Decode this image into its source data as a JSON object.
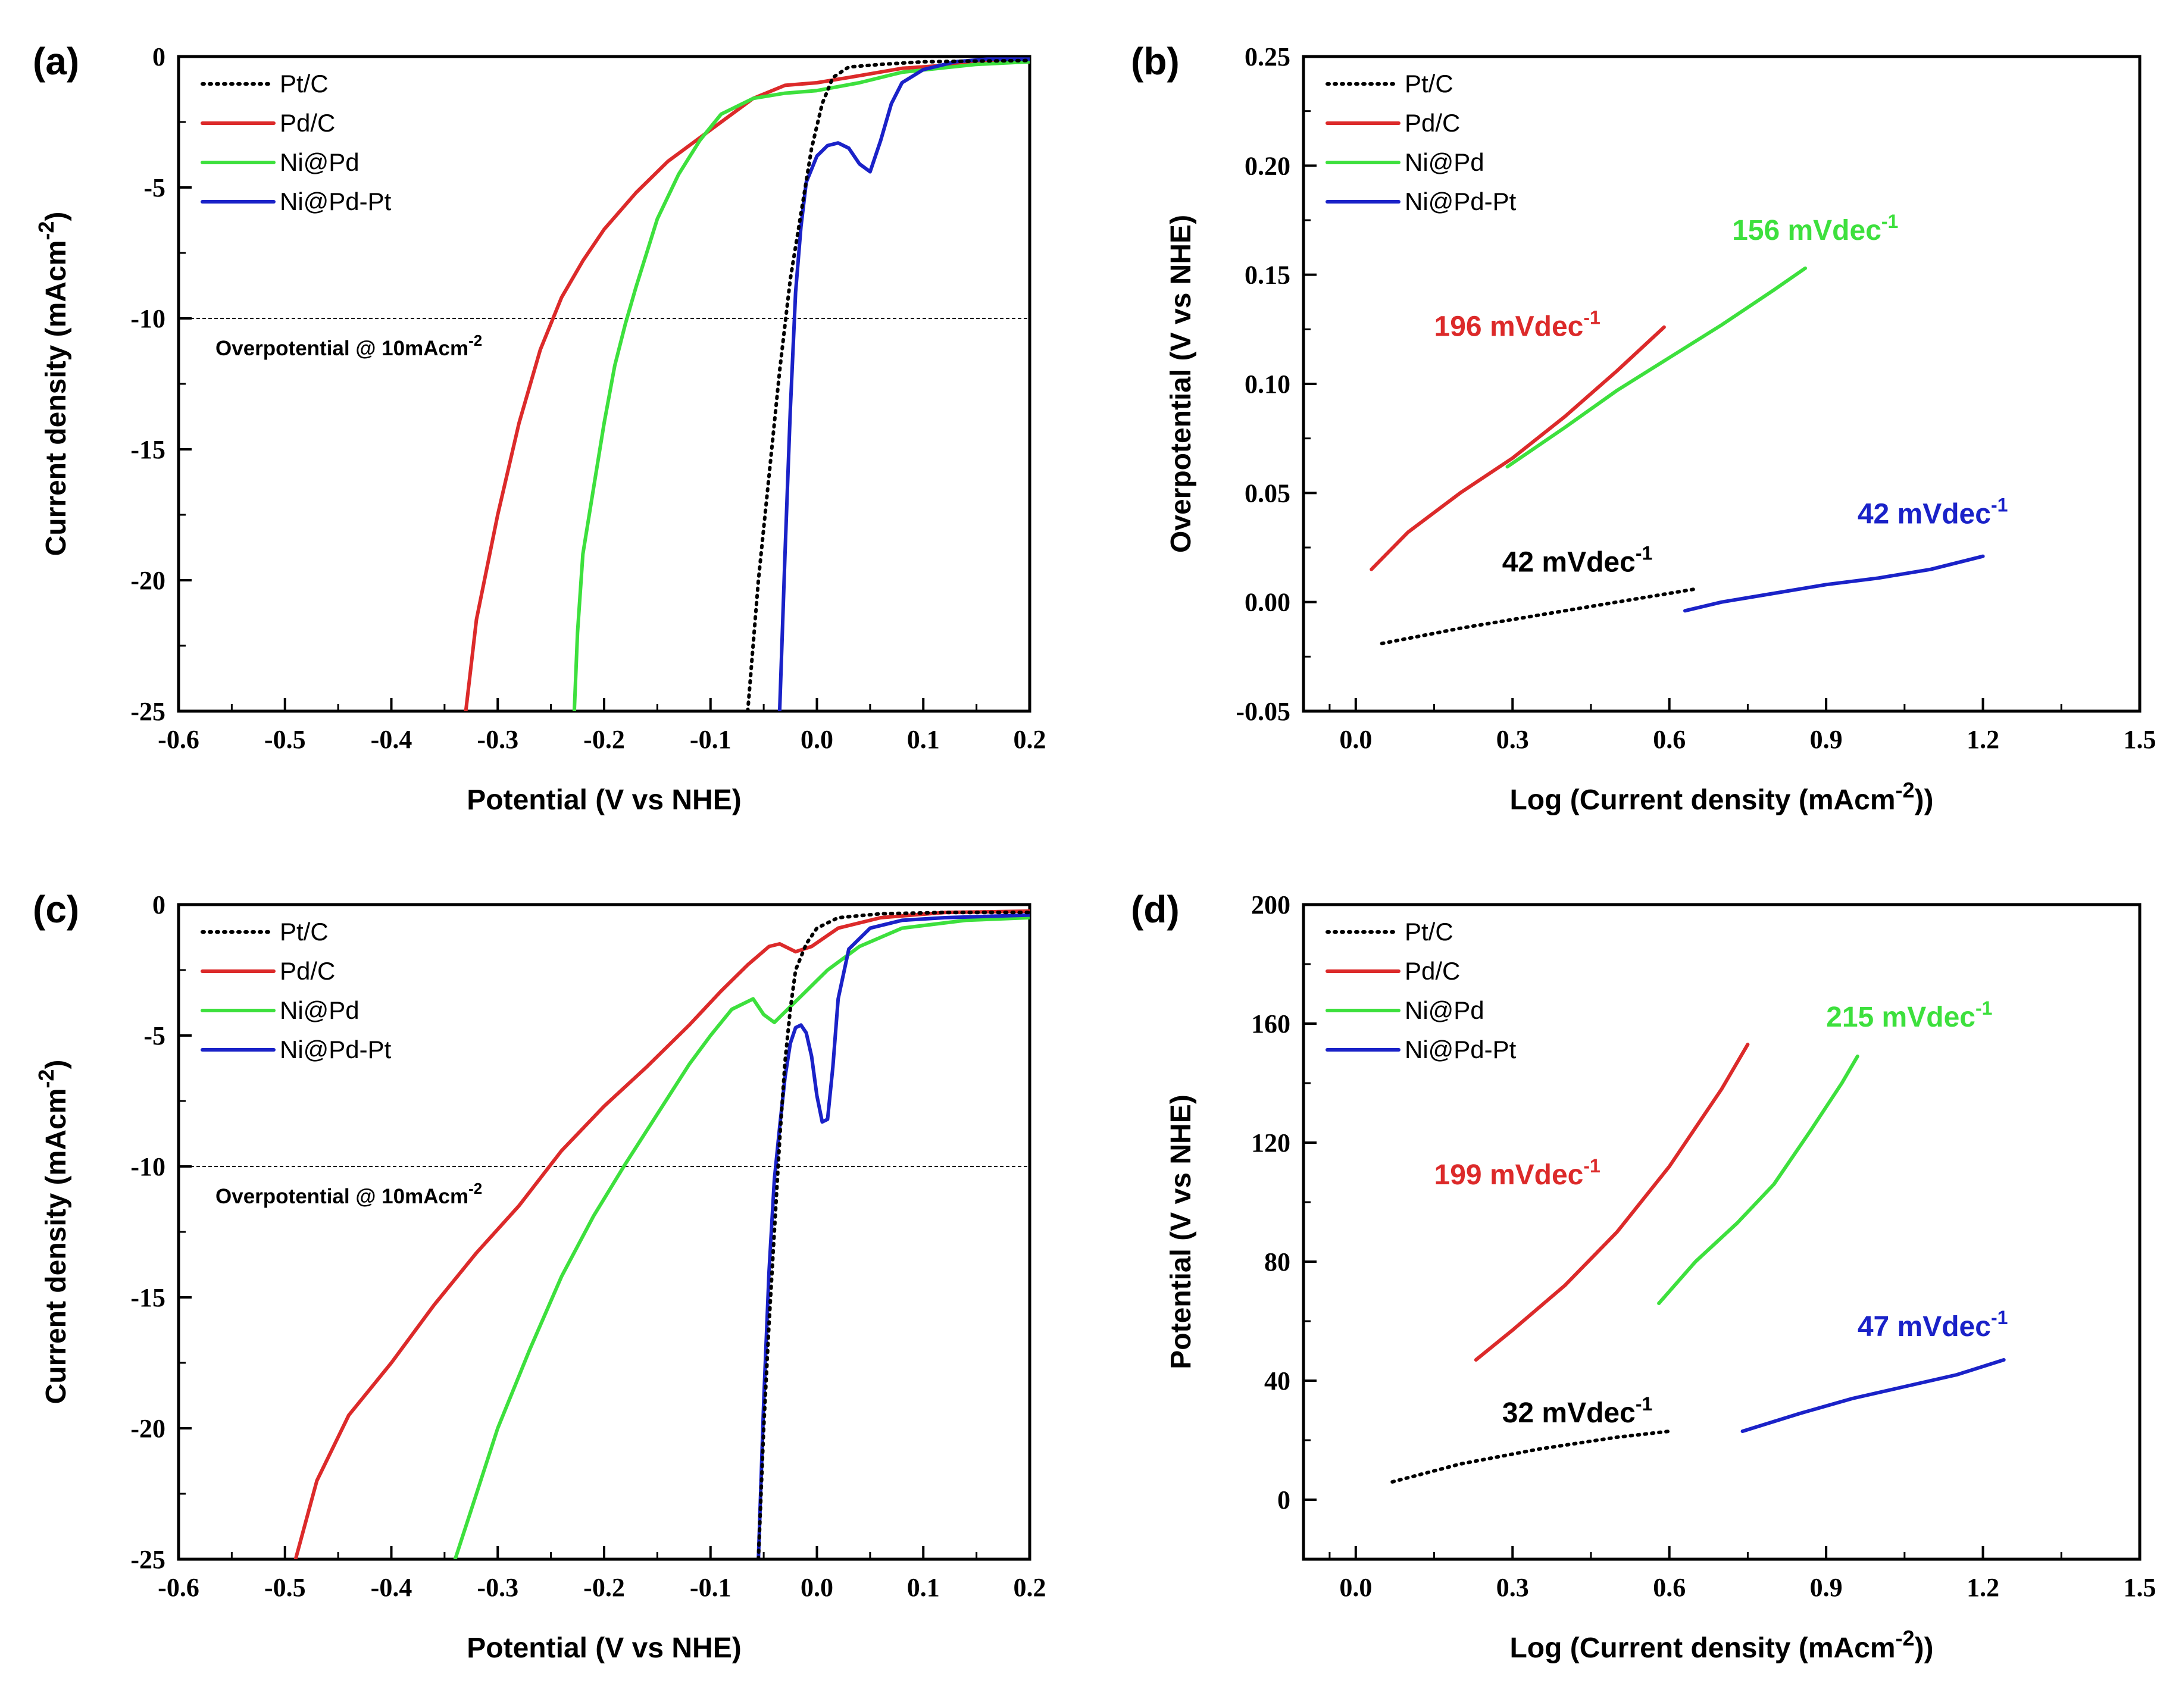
{
  "colors": {
    "Pt/C": "#000000",
    "Pd/C": "#dc2a2a",
    "Ni@Pd": "#3de03d",
    "Ni@Pd-Pt": "#1a22c8"
  },
  "chart_data": [
    {
      "panel": "(a)",
      "type": "line",
      "xlabel": "Potential (V vs NHE)",
      "ylabel": "Current density (mAcm-2)",
      "xlim": [
        -0.6,
        0.2
      ],
      "ylim": [
        -25,
        0
      ],
      "xticks": [
        -0.6,
        -0.5,
        -0.4,
        -0.3,
        -0.2,
        -0.1,
        0.0,
        0.1,
        0.2
      ],
      "xticklabels": [
        "-0.6",
        "-0.5",
        "-0.4",
        "-0.3",
        "-0.2",
        "-0.1",
        "0.0",
        "0.1",
        "0.2"
      ],
      "yticks": [
        0,
        -5,
        -10,
        -15,
        -20,
        -25
      ],
      "yticklabels": [
        "0",
        "-5",
        "-10",
        "-15",
        "-20",
        "-25"
      ],
      "legend": [
        "Pt/C",
        "Pd/C",
        "Ni@Pd",
        "Ni@Pd-Pt"
      ],
      "legend_position": "top-left",
      "hline": -10,
      "annotation": "Overpotential @ 10mAcm",
      "annotation_sup": "-2",
      "series": [
        {
          "name": "Pt/C",
          "style": "dotted",
          "x": [
            -0.065,
            -0.055,
            -0.045,
            -0.035,
            -0.025,
            -0.015,
            -0.005,
            0.005,
            0.015,
            0.03,
            0.06,
            0.1,
            0.2
          ],
          "y": [
            -25,
            -20,
            -16,
            -12,
            -8.5,
            -6,
            -3.5,
            -1.8,
            -0.8,
            -0.4,
            -0.3,
            -0.2,
            -0.15
          ]
        },
        {
          "name": "Pd/C",
          "style": "solid",
          "x": [
            -0.33,
            -0.32,
            -0.3,
            -0.28,
            -0.26,
            -0.24,
            -0.22,
            -0.2,
            -0.17,
            -0.14,
            -0.1,
            -0.06,
            -0.03,
            0.0,
            0.03,
            0.08,
            0.15,
            0.2
          ],
          "y": [
            -25,
            -21.5,
            -17.5,
            -14,
            -11.2,
            -9.2,
            -7.8,
            -6.6,
            -5.2,
            -4,
            -2.8,
            -1.6,
            -1.1,
            -1.0,
            -0.8,
            -0.45,
            -0.25,
            -0.2
          ]
        },
        {
          "name": "Ni@Pd",
          "style": "solid",
          "x": [
            -0.228,
            -0.225,
            -0.22,
            -0.21,
            -0.2,
            -0.19,
            -0.18,
            -0.17,
            -0.16,
            -0.15,
            -0.13,
            -0.11,
            -0.09,
            -0.06,
            -0.03,
            0.0,
            0.04,
            0.08,
            0.15,
            0.2
          ],
          "y": [
            -25,
            -22,
            -19,
            -16.5,
            -14,
            -11.8,
            -10.2,
            -8.8,
            -7.5,
            -6.2,
            -4.5,
            -3.2,
            -2.2,
            -1.6,
            -1.4,
            -1.3,
            -1.0,
            -0.6,
            -0.3,
            -0.2
          ]
        },
        {
          "name": "Ni@Pd-Pt",
          "style": "solid",
          "x": [
            -0.035,
            -0.03,
            -0.025,
            -0.02,
            -0.015,
            -0.01,
            0.0,
            0.01,
            0.02,
            0.03,
            0.04,
            0.05,
            0.06,
            0.07,
            0.08,
            0.1,
            0.13,
            0.16,
            0.2
          ],
          "y": [
            -25,
            -19,
            -13.5,
            -9,
            -6.5,
            -4.8,
            -3.8,
            -3.4,
            -3.3,
            -3.5,
            -4.1,
            -4.4,
            -3.2,
            -1.8,
            -1.0,
            -0.5,
            -0.2,
            -0.1,
            -0.1
          ]
        }
      ],
      "slope_labels": []
    },
    {
      "panel": "(b)",
      "type": "line",
      "xlabel": "Log (Current density (mAcm-2))",
      "ylabel": "Overpotential (V vs NHE)",
      "xlim": [
        -0.1,
        1.5
      ],
      "ylim": [
        -0.05,
        0.25
      ],
      "xticks": [
        0.0,
        0.3,
        0.6,
        0.9,
        1.2,
        1.5
      ],
      "xticklabels": [
        "0.0",
        "0.3",
        "0.6",
        "0.9",
        "1.2",
        "1.5"
      ],
      "yticks": [
        -0.05,
        0.0,
        0.05,
        0.1,
        0.15,
        0.2,
        0.25
      ],
      "yticklabels": [
        "-0.05",
        "0.00",
        "0.05",
        "0.10",
        "0.15",
        "0.20",
        "0.25"
      ],
      "legend": [
        "Pt/C",
        "Pd/C",
        "Ni@Pd",
        "Ni@Pd-Pt"
      ],
      "legend_position": "top-left",
      "series": [
        {
          "name": "Pt/C",
          "style": "dotted",
          "x": [
            0.05,
            0.2,
            0.4,
            0.65
          ],
          "y": [
            -0.019,
            -0.012,
            -0.004,
            0.006
          ]
        },
        {
          "name": "Pd/C",
          "style": "solid",
          "x": [
            0.03,
            0.1,
            0.2,
            0.3,
            0.4,
            0.5,
            0.59
          ],
          "y": [
            0.015,
            0.032,
            0.05,
            0.066,
            0.085,
            0.106,
            0.126
          ]
        },
        {
          "name": "Ni@Pd",
          "style": "solid",
          "x": [
            0.29,
            0.4,
            0.5,
            0.6,
            0.7,
            0.8,
            0.86
          ],
          "y": [
            0.062,
            0.08,
            0.097,
            0.112,
            0.127,
            0.143,
            0.153
          ]
        },
        {
          "name": "Ni@Pd-Pt",
          "style": "solid",
          "x": [
            0.63,
            0.7,
            0.8,
            0.9,
            1.0,
            1.1,
            1.2
          ],
          "y": [
            -0.004,
            0.0,
            0.004,
            0.008,
            0.011,
            0.015,
            0.021
          ]
        }
      ],
      "slope_labels": [
        {
          "series": "Pd/C",
          "text": "196 mVdec",
          "sup": "-1",
          "x": 0.15,
          "y": 0.122
        },
        {
          "series": "Ni@Pd",
          "text": "156 mVdec",
          "sup": "-1",
          "x": 0.72,
          "y": 0.166
        },
        {
          "series": "Pt/C",
          "text": "42 mVdec",
          "sup": "-1",
          "x": 0.28,
          "y": 0.014
        },
        {
          "series": "Ni@Pd-Pt",
          "text": "42 mVdec",
          "sup": "-1",
          "x": 0.96,
          "y": 0.036
        }
      ]
    },
    {
      "panel": "(c)",
      "type": "line",
      "xlabel": "Potential (V vs NHE)",
      "ylabel": "Current density (mAcm-2)",
      "xlim": [
        -0.6,
        0.2
      ],
      "ylim": [
        -25,
        0
      ],
      "xticks": [
        -0.6,
        -0.5,
        -0.4,
        -0.3,
        -0.2,
        -0.1,
        0.0,
        0.1,
        0.2
      ],
      "xticklabels": [
        "-0.6",
        "-0.5",
        "-0.4",
        "-0.3",
        "-0.2",
        "-0.1",
        "0.0",
        "0.1",
        "0.2"
      ],
      "yticks": [
        0,
        -5,
        -10,
        -15,
        -20,
        -25
      ],
      "yticklabels": [
        "0",
        "-5",
        "-10",
        "-15",
        "-20",
        "-25"
      ],
      "legend": [
        "Pt/C",
        "Pd/C",
        "Ni@Pd",
        "Ni@Pd-Pt"
      ],
      "legend_position": "top-left",
      "hline": -10,
      "annotation": "Overpotential @ 10mAcm",
      "annotation_sup": "-2",
      "series": [
        {
          "name": "Pt/C",
          "style": "dotted",
          "x": [
            -0.055,
            -0.05,
            -0.045,
            -0.04,
            -0.035,
            -0.03,
            -0.025,
            -0.02,
            -0.01,
            0.0,
            0.02,
            0.06,
            0.12,
            0.2
          ],
          "y": [
            -25,
            -20,
            -16,
            -12.5,
            -9,
            -6,
            -4,
            -2.5,
            -1.5,
            -0.9,
            -0.5,
            -0.35,
            -0.3,
            -0.3
          ]
        },
        {
          "name": "Pd/C",
          "style": "solid",
          "x": [
            -0.49,
            -0.47,
            -0.44,
            -0.4,
            -0.36,
            -0.32,
            -0.28,
            -0.24,
            -0.2,
            -0.16,
            -0.12,
            -0.09,
            -0.065,
            -0.045,
            -0.035,
            -0.02,
            -0.005,
            0.02,
            0.06,
            0.12,
            0.2
          ],
          "y": [
            -25,
            -22,
            -19.5,
            -17.5,
            -15.3,
            -13.3,
            -11.5,
            -9.4,
            -7.7,
            -6.2,
            -4.6,
            -3.3,
            -2.3,
            -1.6,
            -1.5,
            -1.8,
            -1.6,
            -0.9,
            -0.5,
            -0.3,
            -0.25
          ]
        },
        {
          "name": "Ni@Pd",
          "style": "solid",
          "x": [
            -0.34,
            -0.32,
            -0.3,
            -0.27,
            -0.24,
            -0.21,
            -0.18,
            -0.15,
            -0.12,
            -0.1,
            -0.08,
            -0.06,
            -0.05,
            -0.04,
            -0.03,
            -0.01,
            0.01,
            0.04,
            0.08,
            0.14,
            0.2
          ],
          "y": [
            -25,
            -22.5,
            -20,
            -17,
            -14.2,
            -11.9,
            -9.9,
            -8,
            -6.1,
            -5,
            -4,
            -3.6,
            -4.2,
            -4.5,
            -4.1,
            -3.3,
            -2.5,
            -1.6,
            -0.9,
            -0.6,
            -0.5
          ]
        },
        {
          "name": "Ni@Pd-Pt",
          "style": "solid",
          "x": [
            -0.055,
            -0.05,
            -0.045,
            -0.04,
            -0.035,
            -0.03,
            -0.025,
            -0.02,
            -0.015,
            -0.01,
            -0.005,
            0.0,
            0.005,
            0.01,
            0.015,
            0.02,
            0.03,
            0.05,
            0.08,
            0.12,
            0.2
          ],
          "y": [
            -25,
            -19,
            -14,
            -10.5,
            -8.5,
            -6.6,
            -5.3,
            -4.7,
            -4.6,
            -4.9,
            -5.8,
            -7.3,
            -8.3,
            -8.2,
            -6.2,
            -3.6,
            -1.7,
            -0.9,
            -0.6,
            -0.5,
            -0.4
          ]
        }
      ],
      "slope_labels": []
    },
    {
      "panel": "(d)",
      "type": "line",
      "xlabel": "Log (Current density (mAcm-2))",
      "ylabel": "Potential (V vs NHE)",
      "xlim": [
        -0.1,
        1.5
      ],
      "ylim": [
        -20,
        200
      ],
      "xticks": [
        0.0,
        0.3,
        0.6,
        0.9,
        1.2,
        1.5
      ],
      "xticklabels": [
        "0.0",
        "0.3",
        "0.6",
        "0.9",
        "1.2",
        "1.5"
      ],
      "yticks": [
        0,
        40,
        80,
        120,
        160,
        200
      ],
      "yticklabels": [
        "0",
        "40",
        "80",
        "120",
        "160",
        "200"
      ],
      "legend": [
        "Pt/C",
        "Pd/C",
        "Ni@Pd",
        "Ni@Pd-Pt"
      ],
      "legend_position": "top-left",
      "series": [
        {
          "name": "Pt/C",
          "style": "dotted",
          "x": [
            0.07,
            0.2,
            0.35,
            0.5,
            0.6
          ],
          "y": [
            6,
            12,
            17,
            21,
            23
          ]
        },
        {
          "name": "Pd/C",
          "style": "solid",
          "x": [
            0.23,
            0.3,
            0.4,
            0.5,
            0.6,
            0.7,
            0.75
          ],
          "y": [
            47,
            57,
            72,
            90,
            112,
            138,
            153
          ]
        },
        {
          "name": "Ni@Pd",
          "style": "solid",
          "x": [
            0.58,
            0.65,
            0.73,
            0.8,
            0.87,
            0.93,
            0.96
          ],
          "y": [
            66,
            80,
            93,
            106,
            124,
            140,
            149
          ]
        },
        {
          "name": "Ni@Pd-Pt",
          "style": "solid",
          "x": [
            0.74,
            0.85,
            0.95,
            1.05,
            1.15,
            1.24
          ],
          "y": [
            23,
            29,
            34,
            38,
            42,
            47
          ]
        }
      ],
      "slope_labels": [
        {
          "series": "Pd/C",
          "text": "199 mVdec",
          "sup": "-1",
          "x": 0.15,
          "y": 106
        },
        {
          "series": "Ni@Pd",
          "text": "215 mVdec",
          "sup": "-1",
          "x": 0.9,
          "y": 159
        },
        {
          "series": "Pt/C",
          "text": "32 mVdec",
          "sup": "-1",
          "x": 0.28,
          "y": 26
        },
        {
          "series": "Ni@Pd-Pt",
          "text": "47 mVdec",
          "sup": "-1",
          "x": 0.96,
          "y": 55
        }
      ]
    }
  ]
}
